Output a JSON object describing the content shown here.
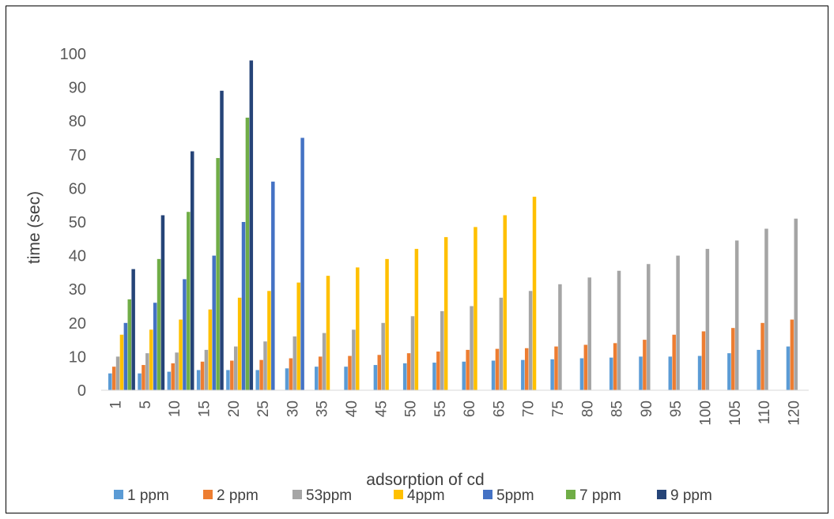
{
  "chart_data": {
    "type": "bar",
    "title": "",
    "xlabel": "adsorption  of cd",
    "ylabel": "time (sec)",
    "ylim": [
      0,
      100
    ],
    "yticks": [
      0,
      10,
      20,
      30,
      40,
      50,
      60,
      70,
      80,
      90,
      100
    ],
    "grid": false,
    "legend_position": "bottom",
    "categories": [
      "1",
      "5",
      "10",
      "15",
      "20",
      "25",
      "30",
      "35",
      "40",
      "45",
      "50",
      "55",
      "60",
      "65",
      "70",
      "75",
      "80",
      "85",
      "90",
      "95",
      "100",
      "105",
      "110",
      "120"
    ],
    "series": [
      {
        "name": "1 ppm",
        "color": "#5B9BD5",
        "values": [
          5,
          5,
          5.5,
          6,
          6,
          6,
          6.5,
          7,
          7,
          7.5,
          8,
          8.2,
          8.5,
          8.8,
          9,
          9.2,
          9.5,
          9.7,
          10,
          10,
          10.2,
          11,
          12,
          13
        ]
      },
      {
        "name": "2 ppm",
        "color": "#ED7D31",
        "values": [
          7,
          7.5,
          8,
          8.5,
          8.8,
          9,
          9.5,
          10,
          10.2,
          10.5,
          11,
          11.5,
          12,
          12.3,
          12.5,
          13,
          13.5,
          14,
          15,
          16.5,
          17.5,
          18.5,
          20,
          21
        ]
      },
      {
        "name": "53ppm",
        "color": "#A5A5A5",
        "values": [
          10,
          11,
          11.2,
          12,
          13,
          14.5,
          16,
          17,
          18,
          20,
          22,
          23.5,
          25,
          27.5,
          29.5,
          31.5,
          33.5,
          35.5,
          37.5,
          40,
          42,
          44.5,
          48,
          51
        ]
      },
      {
        "name": "4ppm",
        "color": "#FFC000",
        "values": [
          16.5,
          18,
          21,
          24,
          27.5,
          29.5,
          32,
          34,
          36.5,
          39,
          42,
          45.5,
          48.5,
          52,
          57.5,
          null,
          null,
          null,
          null,
          null,
          null,
          null,
          null,
          null
        ]
      },
      {
        "name": "5ppm",
        "color": "#4472C4",
        "values": [
          20,
          26,
          33,
          40,
          50,
          62,
          75,
          null,
          null,
          null,
          null,
          null,
          null,
          null,
          null,
          null,
          null,
          null,
          null,
          null,
          null,
          null,
          null,
          null
        ]
      },
      {
        "name": "7 ppm",
        "color": "#70AD47",
        "values": [
          27,
          39,
          53,
          69,
          81,
          null,
          null,
          null,
          null,
          null,
          null,
          null,
          null,
          null,
          null,
          null,
          null,
          null,
          null,
          null,
          null,
          null,
          null,
          null
        ]
      },
      {
        "name": "9 ppm",
        "color": "#264478",
        "values": [
          36,
          52,
          71,
          89,
          98,
          null,
          null,
          null,
          null,
          null,
          null,
          null,
          null,
          null,
          null,
          null,
          null,
          null,
          null,
          null,
          null,
          null,
          null,
          null
        ]
      }
    ]
  }
}
